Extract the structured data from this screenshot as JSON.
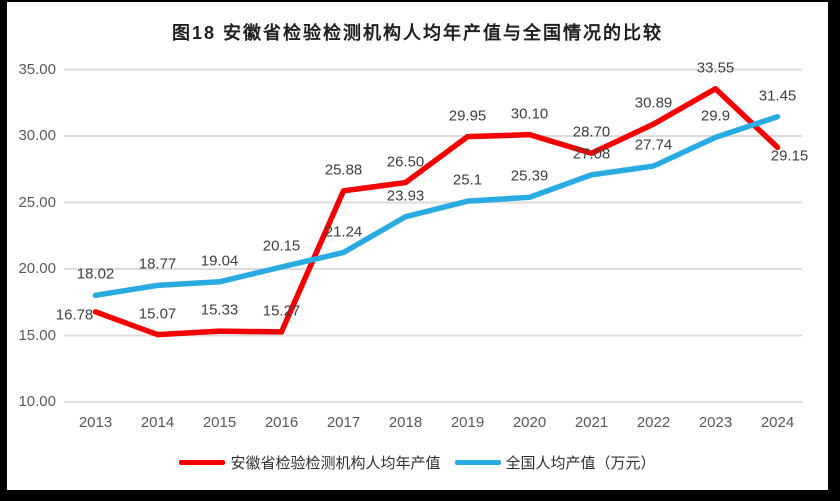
{
  "page": {
    "background_color": "#ffffff",
    "frame_color": "#000000"
  },
  "chart_data": {
    "type": "line",
    "title": "图18 安徽省检验检测机构人均年产值与全国情况的比较",
    "categories": [
      "2013",
      "2014",
      "2015",
      "2016",
      "2017",
      "2018",
      "2019",
      "2020",
      "2021",
      "2022",
      "2023",
      "2024"
    ],
    "series": [
      {
        "name": "安徽省检验检测机构人均年产值",
        "color": "#f40000",
        "values": [
          16.78,
          15.07,
          15.33,
          15.27,
          25.88,
          26.5,
          29.95,
          30.1,
          28.7,
          30.89,
          33.55,
          29.15
        ],
        "labels": [
          "16.78",
          "15.07",
          "15.33",
          "15.27",
          "25.88",
          "26.50",
          "29.95",
          "30.10",
          "28.70",
          "30.89",
          "33.55",
          "29.15"
        ]
      },
      {
        "name": "全国人均产值（万元）",
        "color": "#29abe2",
        "values": [
          18.02,
          18.77,
          19.04,
          20.15,
          21.24,
          23.93,
          25.1,
          25.39,
          27.08,
          27.74,
          29.9,
          31.45
        ],
        "labels": [
          "18.02",
          "18.77",
          "19.04",
          "20.15",
          "21.24",
          "23.93",
          "25.1",
          "25.39",
          "27.08",
          "27.74",
          "29.9",
          "31.45"
        ]
      }
    ],
    "xlabel": "",
    "ylabel": "",
    "ylim": [
      10,
      35
    ],
    "y_ticks": [
      10,
      15,
      20,
      25,
      30,
      35
    ],
    "y_tick_labels": [
      "10.00",
      "15.00",
      "20.00",
      "25.00",
      "30.00",
      "35.00"
    ],
    "grid": true,
    "gridline_color": "#dcdcdc",
    "axis_label_color": "#595959",
    "data_label_color": "#3f3f3f",
    "legend_position": "bottom"
  }
}
